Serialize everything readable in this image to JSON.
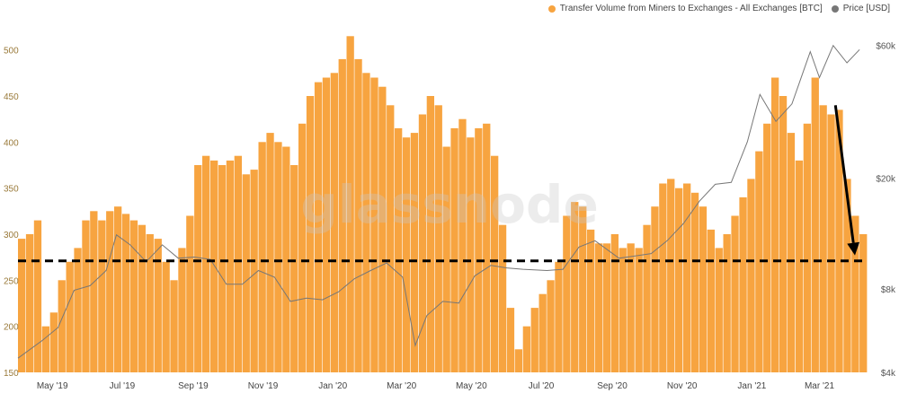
{
  "watermark": "glassnode",
  "legend": [
    {
      "label": "Transfer Volume from Miners to Exchanges - All Exchanges [BTC]",
      "color": "#f7a440"
    },
    {
      "label": "Price [USD]",
      "color": "#777777"
    }
  ],
  "chart_data": {
    "type": "bar",
    "title": "",
    "xlabel": "",
    "ylabel": "",
    "grid": false,
    "legend_placement": "top-right",
    "y_ticks": [
      "150",
      "200",
      "250",
      "300",
      "350",
      "400",
      "450",
      "500"
    ],
    "y_range": [
      150,
      525
    ],
    "y2_ticks": [
      "$4k",
      "$8k",
      "$20k",
      "$60k"
    ],
    "y2_tick_values": [
      4000,
      8000,
      20000,
      60000
    ],
    "y2_scale": "log",
    "x_ticks": [
      "May '19",
      "Jul '19",
      "Sep '19",
      "Nov '19",
      "Jan '20",
      "Mar '20",
      "May '20",
      "Jul '20",
      "Sep '20",
      "Nov '20",
      "Jan '21",
      "Mar '21"
    ],
    "series": [
      {
        "name": "Transfer Volume from Miners to Exchanges - All Exchanges [BTC]",
        "type": "bar",
        "color": "#f7a440",
        "points": [
          [
            "2019-04-01",
            295
          ],
          [
            "2019-04-08",
            300
          ],
          [
            "2019-04-15",
            315
          ],
          [
            "2019-04-22",
            200
          ],
          [
            "2019-04-29",
            215
          ],
          [
            "2019-05-06",
            250
          ],
          [
            "2019-05-13",
            270
          ],
          [
            "2019-05-20",
            285
          ],
          [
            "2019-05-27",
            315
          ],
          [
            "2019-06-03",
            325
          ],
          [
            "2019-06-10",
            315
          ],
          [
            "2019-06-17",
            325
          ],
          [
            "2019-06-24",
            330
          ],
          [
            "2019-07-01",
            322
          ],
          [
            "2019-07-08",
            315
          ],
          [
            "2019-07-15",
            310
          ],
          [
            "2019-07-22",
            300
          ],
          [
            "2019-07-29",
            295
          ],
          [
            "2019-08-05",
            270
          ],
          [
            "2019-08-12",
            250
          ],
          [
            "2019-08-19",
            285
          ],
          [
            "2019-08-26",
            320
          ],
          [
            "2019-09-02",
            375
          ],
          [
            "2019-09-09",
            385
          ],
          [
            "2019-09-16",
            380
          ],
          [
            "2019-09-23",
            375
          ],
          [
            "2019-09-30",
            380
          ],
          [
            "2019-10-07",
            385
          ],
          [
            "2019-10-14",
            365
          ],
          [
            "2019-10-21",
            370
          ],
          [
            "2019-10-28",
            400
          ],
          [
            "2019-11-04",
            410
          ],
          [
            "2019-11-11",
            400
          ],
          [
            "2019-11-18",
            395
          ],
          [
            "2019-11-25",
            375
          ],
          [
            "2019-12-02",
            420
          ],
          [
            "2019-12-09",
            450
          ],
          [
            "2019-12-16",
            465
          ],
          [
            "2019-12-23",
            470
          ],
          [
            "2019-12-30",
            475
          ],
          [
            "2020-01-06",
            490
          ],
          [
            "2020-01-13",
            515
          ],
          [
            "2020-01-20",
            490
          ],
          [
            "2020-01-27",
            475
          ],
          [
            "2020-02-03",
            470
          ],
          [
            "2020-02-10",
            460
          ],
          [
            "2020-02-17",
            440
          ],
          [
            "2020-02-24",
            415
          ],
          [
            "2020-03-02",
            405
          ],
          [
            "2020-03-09",
            410
          ],
          [
            "2020-03-16",
            430
          ],
          [
            "2020-03-23",
            450
          ],
          [
            "2020-03-30",
            440
          ],
          [
            "2020-04-06",
            395
          ],
          [
            "2020-04-13",
            415
          ],
          [
            "2020-04-20",
            425
          ],
          [
            "2020-04-27",
            405
          ],
          [
            "2020-05-04",
            415
          ],
          [
            "2020-05-11",
            420
          ],
          [
            "2020-05-18",
            385
          ],
          [
            "2020-05-25",
            310
          ],
          [
            "2020-06-01",
            220
          ],
          [
            "2020-06-08",
            175
          ],
          [
            "2020-06-15",
            200
          ],
          [
            "2020-06-22",
            220
          ],
          [
            "2020-06-29",
            235
          ],
          [
            "2020-07-06",
            250
          ],
          [
            "2020-07-13",
            270
          ],
          [
            "2020-07-20",
            320
          ],
          [
            "2020-07-27",
            335
          ],
          [
            "2020-08-03",
            330
          ],
          [
            "2020-08-10",
            305
          ],
          [
            "2020-08-17",
            290
          ],
          [
            "2020-08-24",
            290
          ],
          [
            "2020-08-31",
            300
          ],
          [
            "2020-09-07",
            285
          ],
          [
            "2020-09-14",
            290
          ],
          [
            "2020-09-21",
            285
          ],
          [
            "2020-09-28",
            310
          ],
          [
            "2020-10-05",
            330
          ],
          [
            "2020-10-12",
            355
          ],
          [
            "2020-10-19",
            360
          ],
          [
            "2020-10-26",
            350
          ],
          [
            "2020-11-02",
            355
          ],
          [
            "2020-11-09",
            345
          ],
          [
            "2020-11-16",
            330
          ],
          [
            "2020-11-23",
            305
          ],
          [
            "2020-11-30",
            285
          ],
          [
            "2020-12-07",
            300
          ],
          [
            "2020-12-14",
            320
          ],
          [
            "2020-12-21",
            340
          ],
          [
            "2020-12-28",
            360
          ],
          [
            "2021-01-04",
            390
          ],
          [
            "2021-01-11",
            420
          ],
          [
            "2021-01-18",
            470
          ],
          [
            "2021-01-25",
            450
          ],
          [
            "2021-02-01",
            410
          ],
          [
            "2021-02-08",
            380
          ],
          [
            "2021-02-15",
            420
          ],
          [
            "2021-02-22",
            470
          ],
          [
            "2021-03-01",
            440
          ],
          [
            "2021-03-08",
            430
          ],
          [
            "2021-03-15",
            435
          ],
          [
            "2021-03-22",
            360
          ],
          [
            "2021-03-29",
            320
          ],
          [
            "2021-04-05",
            300
          ]
        ]
      },
      {
        "name": "Price [USD]",
        "type": "line",
        "axis": "right",
        "color": "#777777",
        "points": [
          [
            "2019-04-01",
            4500
          ],
          [
            "2019-04-22",
            5200
          ],
          [
            "2019-05-06",
            5800
          ],
          [
            "2019-05-20",
            7900
          ],
          [
            "2019-06-03",
            8200
          ],
          [
            "2019-06-17",
            9300
          ],
          [
            "2019-06-26",
            12500
          ],
          [
            "2019-07-08",
            11500
          ],
          [
            "2019-07-22",
            10000
          ],
          [
            "2019-08-05",
            11500
          ],
          [
            "2019-08-19",
            10300
          ],
          [
            "2019-09-02",
            10400
          ],
          [
            "2019-09-16",
            10200
          ],
          [
            "2019-09-30",
            8300
          ],
          [
            "2019-10-14",
            8300
          ],
          [
            "2019-10-28",
            9300
          ],
          [
            "2019-11-11",
            8800
          ],
          [
            "2019-11-25",
            7200
          ],
          [
            "2019-12-09",
            7400
          ],
          [
            "2019-12-23",
            7300
          ],
          [
            "2020-01-06",
            7800
          ],
          [
            "2020-01-20",
            8700
          ],
          [
            "2020-02-03",
            9300
          ],
          [
            "2020-02-17",
            9900
          ],
          [
            "2020-03-02",
            8800
          ],
          [
            "2020-03-13",
            5000
          ],
          [
            "2020-03-23",
            6400
          ],
          [
            "2020-04-06",
            7200
          ],
          [
            "2020-04-20",
            7100
          ],
          [
            "2020-05-04",
            8900
          ],
          [
            "2020-05-18",
            9700
          ],
          [
            "2020-06-01",
            9500
          ],
          [
            "2020-06-15",
            9400
          ],
          [
            "2020-07-06",
            9300
          ],
          [
            "2020-07-20",
            9400
          ],
          [
            "2020-08-03",
            11300
          ],
          [
            "2020-08-17",
            11900
          ],
          [
            "2020-09-07",
            10300
          ],
          [
            "2020-09-21",
            10500
          ],
          [
            "2020-10-05",
            10700
          ],
          [
            "2020-10-19",
            11900
          ],
          [
            "2020-11-02",
            13700
          ],
          [
            "2020-11-16",
            16500
          ],
          [
            "2020-11-30",
            19000
          ],
          [
            "2020-12-14",
            19300
          ],
          [
            "2020-12-28",
            27000
          ],
          [
            "2021-01-08",
            40000
          ],
          [
            "2021-01-22",
            32000
          ],
          [
            "2021-02-05",
            37000
          ],
          [
            "2021-02-21",
            57000
          ],
          [
            "2021-03-01",
            46000
          ],
          [
            "2021-03-13",
            60000
          ],
          [
            "2021-03-25",
            52000
          ],
          [
            "2021-04-05",
            58000
          ]
        ]
      }
    ],
    "annotations": [
      {
        "type": "dashed-line",
        "description": "horizontal baseline",
        "y": 271
      },
      {
        "type": "arrow",
        "description": "downward trend arrow",
        "from": [
          "2021-03-15",
          440
        ],
        "to": [
          "2021-04-01",
          277
        ]
      }
    ]
  }
}
